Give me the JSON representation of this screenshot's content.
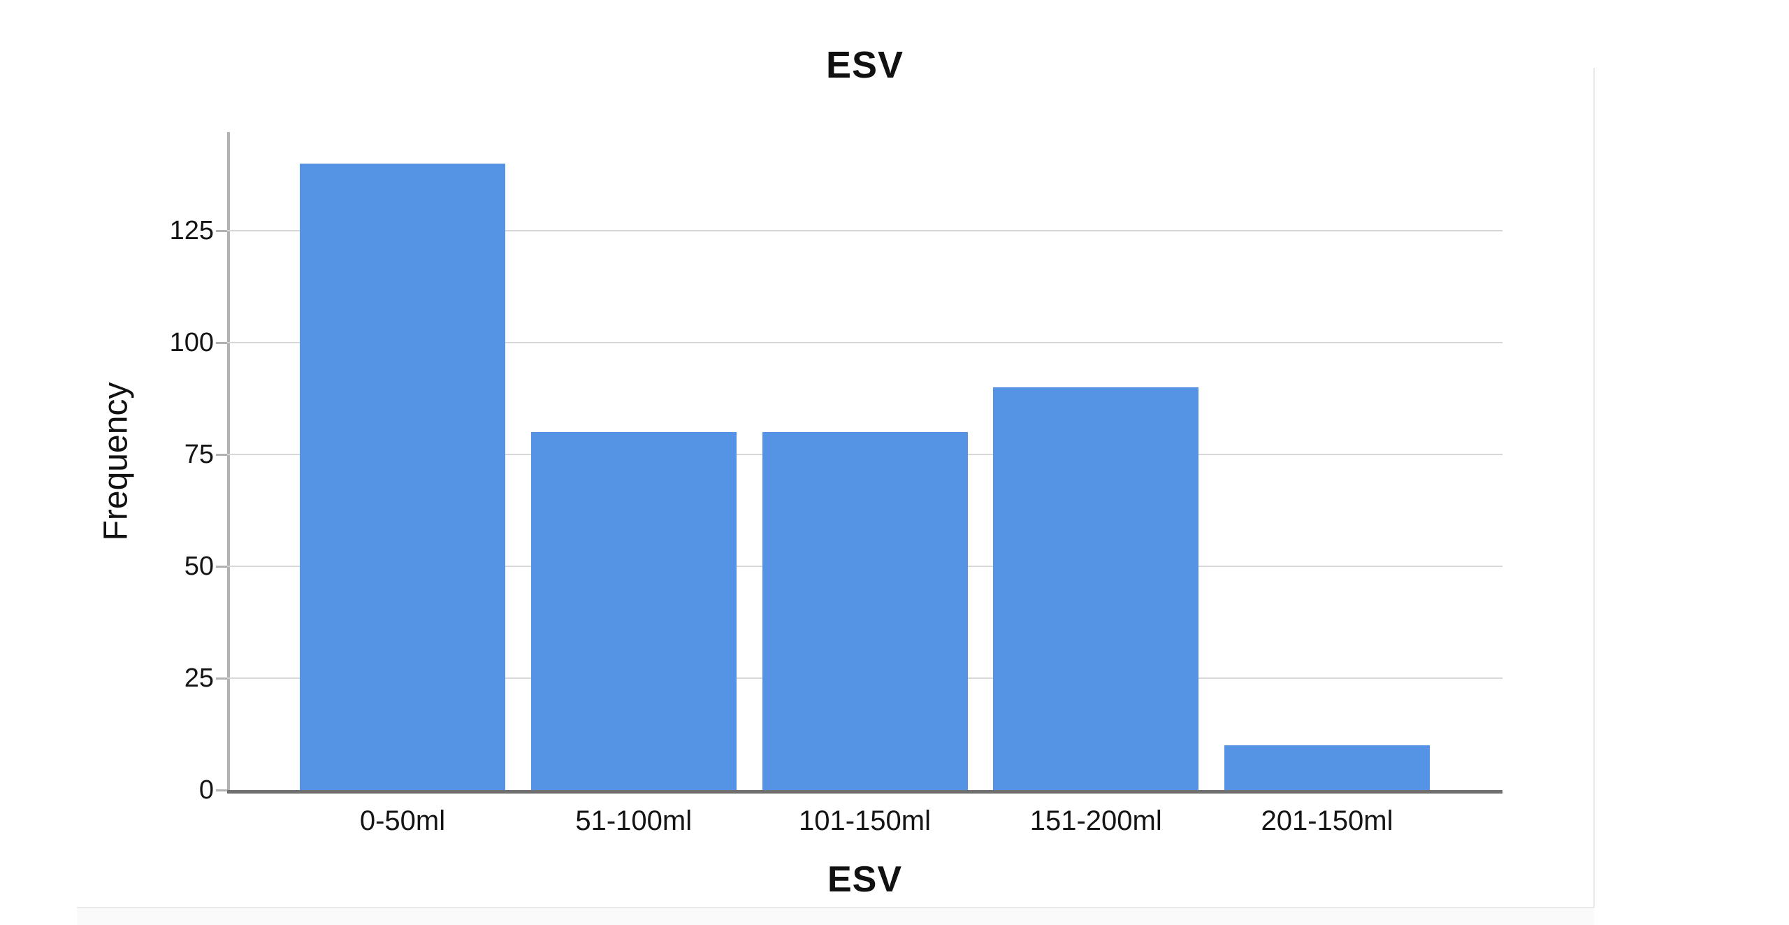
{
  "page": {
    "background": "#ffffff"
  },
  "chart_data": {
    "type": "bar",
    "title": "ESV",
    "xlabel": "ESV",
    "ylabel": "Frequency",
    "categories": [
      "0-50ml",
      "51-100ml",
      "101-150ml",
      "151-200ml",
      "201-150ml"
    ],
    "values": [
      140,
      80,
      80,
      90,
      10
    ],
    "y_ticks": [
      0,
      25,
      50,
      75,
      100,
      125
    ],
    "ylim": [
      0,
      147
    ],
    "grid": true,
    "legend": false,
    "colors": {
      "bar": "#5594e4",
      "x_axis_line": "#6f6f6f",
      "y_axis_line": "#b2b2b2",
      "gridline": "#d6d6d6",
      "tick_mark": "#b2b2b2",
      "text": "#141414",
      "divider": "#e9e9e9",
      "bottom_band": "#fafafa"
    }
  }
}
